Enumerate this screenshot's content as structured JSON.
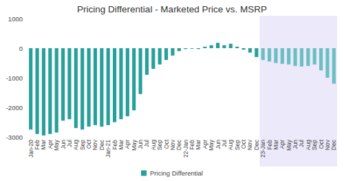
{
  "chart_data": {
    "type": "bar",
    "title": "Pricing Differential - Marketed Price vs. MSRP",
    "categories": [
      "Jan-20",
      "Feb",
      "Mar",
      "Apr",
      "May",
      "Jun",
      "Jul",
      "Aug",
      "Sep",
      "Oct",
      "Nov",
      "Dec",
      "Jan-21",
      "Feb",
      "Mar",
      "Apr",
      "May",
      "Jun",
      "Jul",
      "Aug",
      "Sep",
      "Oct",
      "Nov",
      "Dec",
      "22-Jan",
      "Feb",
      "Mar",
      "Apr",
      "May",
      "Jun",
      "Jul",
      "Aug",
      "Sep",
      "Oct",
      "Nov",
      "Dec",
      "23-Jan",
      "Feb",
      "Mar",
      "Apr",
      "May",
      "Jun",
      "Jul",
      "Aug",
      "Sep",
      "Oct",
      "Nov",
      "Dec"
    ],
    "series": [
      {
        "name": "Pricing Differential",
        "color": "#26a09b",
        "values": [
          -2750,
          -2900,
          -2950,
          -2900,
          -2850,
          -2450,
          -2400,
          -2700,
          -2750,
          -2650,
          -2600,
          -2650,
          -2600,
          -2500,
          -2400,
          -2300,
          -2100,
          -1550,
          -900,
          -700,
          -550,
          -400,
          -250,
          -100,
          -30,
          -20,
          -30,
          50,
          100,
          180,
          100,
          150,
          50,
          -50,
          -150,
          -300,
          -400,
          -450,
          -500,
          -530,
          -550,
          -600,
          -620,
          -600,
          -550,
          -750,
          -1000,
          -1200
        ],
        "colors": [
          "#26a09b",
          "#26a09b",
          "#26a09b",
          "#26a09b",
          "#26a09b",
          "#26a09b",
          "#26a09b",
          "#26a09b",
          "#26a09b",
          "#26a09b",
          "#26a09b",
          "#26a09b",
          "#26a09b",
          "#26a09b",
          "#26a09b",
          "#26a09b",
          "#26a09b",
          "#26a09b",
          "#26a09b",
          "#26a09b",
          "#26a09b",
          "#26a09b",
          "#26a09b",
          "#26a09b",
          "#26a09b",
          "#26a09b",
          "#26a09b",
          "#26a09b",
          "#26a09b",
          "#26a09b",
          "#26a09b",
          "#26a09b",
          "#26a09b",
          "#26a09b",
          "#26a09b",
          "#26a09b",
          "#6bbfc3",
          "#6bbfc3",
          "#6bbfc3",
          "#6bbfc3",
          "#6bbfc3",
          "#6bbfc3",
          "#6bbfc3",
          "#6bbfc3",
          "#6bbfc3",
          "#6bbfc3",
          "#6bbfc3",
          "#6bbfc3"
        ]
      }
    ],
    "ylim": [
      -3000,
      1000
    ],
    "yticks": [
      -3000,
      -2000,
      -1000,
      0,
      1000
    ],
    "grid": false,
    "legend": "bottom"
  }
}
